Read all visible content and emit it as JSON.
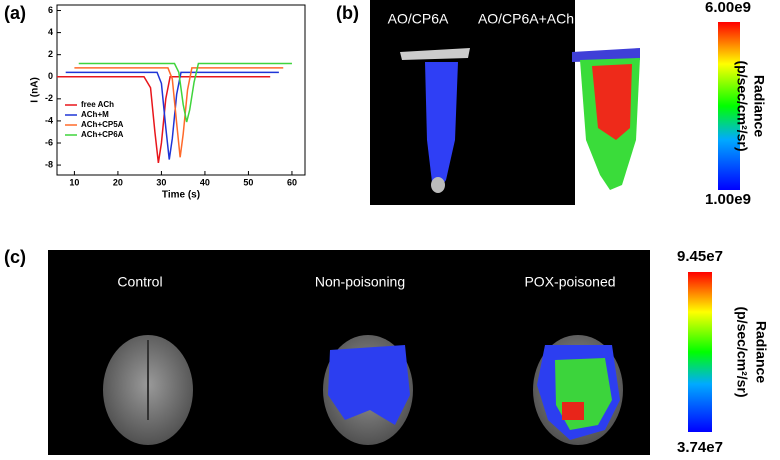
{
  "chart_data": {
    "type": "line",
    "x_label": "Time (s)",
    "y_label": "I (nA)",
    "xlim": [
      6,
      63
    ],
    "ylim": [
      -8.9,
      6.5
    ],
    "xticks": [
      10,
      20,
      30,
      40,
      50,
      60
    ],
    "yticks": [
      -8,
      -6,
      -4,
      -2,
      0,
      2,
      4,
      6
    ],
    "legend": "lower-left",
    "series": [
      {
        "name": "free ACh",
        "color": "#e8161b",
        "x": [
          5,
          26,
          27.5,
          28.5,
          29.3,
          30,
          31,
          32,
          55
        ],
        "values": [
          0,
          0,
          -1,
          -5,
          -7.8,
          -6,
          -2,
          0,
          0
        ]
      },
      {
        "name": "ACh+M",
        "color": "#1f35d6",
        "x": [
          8,
          29,
          30,
          31,
          31.8,
          32.5,
          33.5,
          34.5,
          57
        ],
        "values": [
          0.4,
          0.4,
          -0.6,
          -4.6,
          -7.5,
          -5.6,
          -1.6,
          0.4,
          0.4
        ]
      },
      {
        "name": "ACh+CP5A",
        "color": "#ff6a2a",
        "x": [
          10,
          31.5,
          32.5,
          33.5,
          34.3,
          35,
          36,
          37,
          58
        ],
        "values": [
          0.8,
          0.8,
          -0.2,
          -4.2,
          -7.3,
          -5.2,
          -1.2,
          0.8,
          0.8
        ]
      },
      {
        "name": "ACh+CP6A",
        "color": "#3fd43c",
        "x": [
          11,
          33,
          34,
          35,
          35.8,
          36.5,
          37.5,
          38.5,
          60
        ],
        "values": [
          1.2,
          1.2,
          0.4,
          -2.5,
          -4.1,
          -3,
          -0.5,
          1.2,
          1.2
        ]
      }
    ]
  },
  "panel_labels": [
    "(a)",
    "(b)",
    "(c)"
  ],
  "panel_b": {
    "labels": [
      "AO/CP6A",
      "AO/CP6A+ACh"
    ],
    "colorbar": {
      "max": "6.00e9",
      "min": "1.00e9",
      "title": "Radiance",
      "unit": "(p/sec/cm²/sr)"
    }
  },
  "panel_c": {
    "labels": [
      "Control",
      "Non-poisoning",
      "POX-poisoned"
    ],
    "colorbar": {
      "max": "9.45e7",
      "min": "3.74e7",
      "title": "Radiance",
      "unit": "(p/sec/cm²/sr)"
    }
  }
}
